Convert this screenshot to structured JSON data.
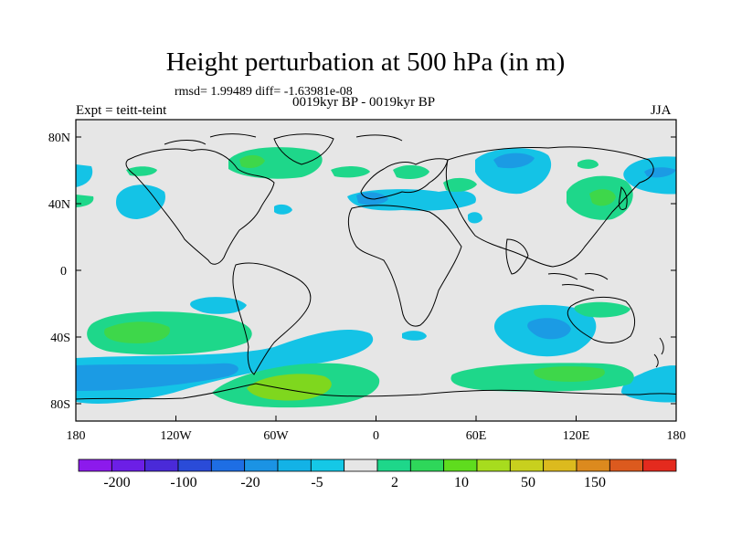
{
  "title": "Height perturbation at 500 hPa (in m)",
  "stats": "rmsd= 1.99489 diff= -1.63981e-08",
  "period": "0019kyr BP - 0019kyr BP",
  "expt": "Expt = teitt-teint",
  "season": "JJA",
  "axes": {
    "lat_ticks": [
      "80N",
      "40N",
      "0",
      "40S",
      "80S"
    ],
    "lon_ticks": [
      "180",
      "120W",
      "60W",
      "0",
      "60E",
      "120E",
      "180"
    ]
  },
  "colorbar": {
    "labels": [
      "-200",
      "-100",
      "-20",
      "-5",
      "2",
      "10",
      "50",
      "150"
    ],
    "colors": [
      "#8c1aec",
      "#6c1fe6",
      "#4a2ad8",
      "#2a4bd8",
      "#1e6ee4",
      "#1b93e4",
      "#13b2e6",
      "#15c8e6",
      "#e6e6e6",
      "#1ed78a",
      "#2ed75a",
      "#5fdc1e",
      "#a7dc1e",
      "#c8d01e",
      "#dcba1e",
      "#dc8a1e",
      "#dc5a1e",
      "#e42a1e"
    ]
  },
  "colors": {
    "land_bg": "#e6e6e6",
    "light_blue": "#14c3e6",
    "mid_blue": "#1b9be4",
    "light_green": "#1ed78a",
    "green": "#3ed74a",
    "yellow_green": "#7fd71e"
  }
}
